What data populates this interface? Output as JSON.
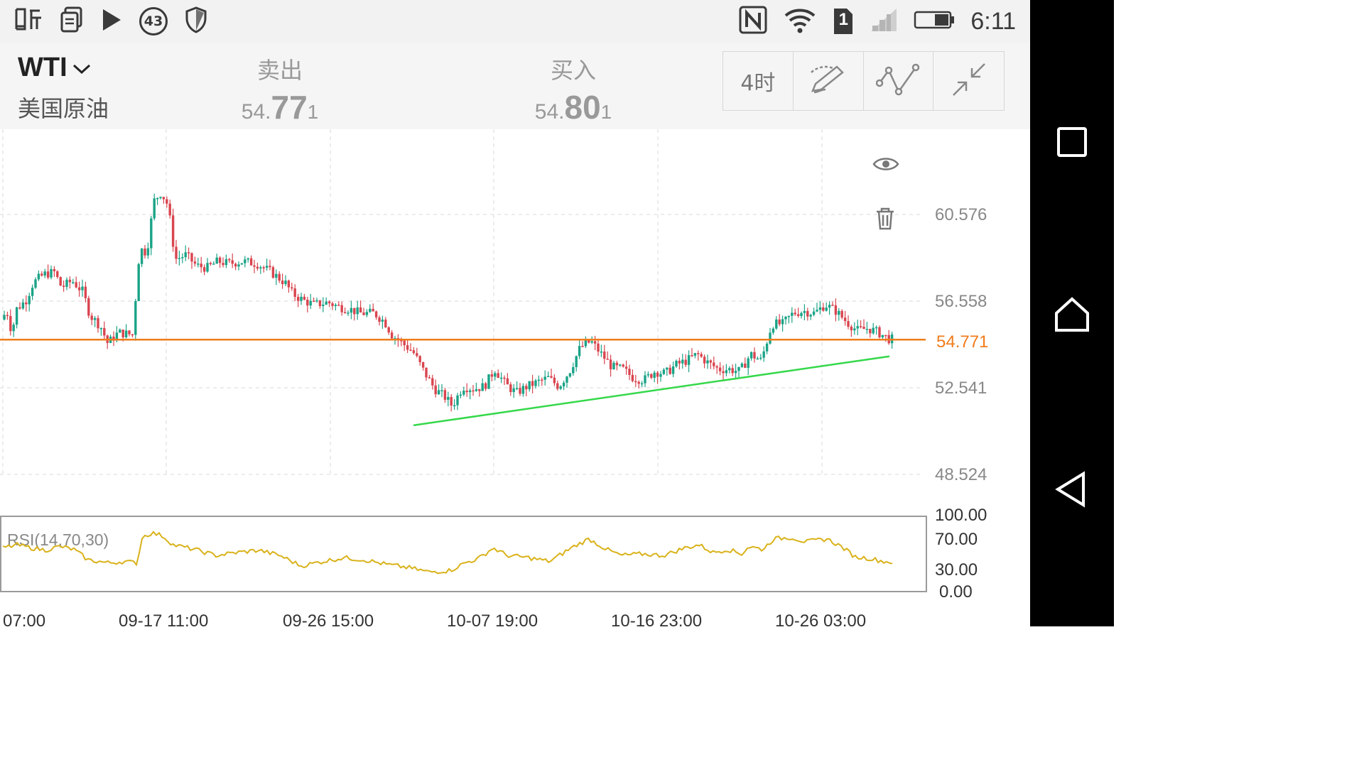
{
  "status_bar": {
    "left_icons": [
      "ting-app-icon",
      "copy-icon",
      "play-icon",
      "notification-badge",
      "shield-icon"
    ],
    "notification_count": "43",
    "right_icons": [
      "nfc-icon",
      "wifi-icon",
      "sim-1-icon",
      "signal-icon",
      "battery-icon"
    ],
    "sim_label": "1",
    "time": "6:11"
  },
  "header": {
    "symbol": "WTI",
    "symbol_name": "美国原油",
    "sell": {
      "label": "卖出",
      "price_a": "54.",
      "price_b": "77",
      "price_c": "1"
    },
    "buy": {
      "label": "买入",
      "price_a": "54.",
      "price_b": "80",
      "price_c": "1"
    },
    "tools": {
      "period_label": "4时",
      "draw_icon": "draw-pen-icon",
      "indicator_icon": "line-indicator-icon",
      "collapse_icon": "collapse-arrows-icon"
    }
  },
  "chart": {
    "eye_icon": "eye-icon",
    "delete_icon": "trash-icon",
    "rsi_label": "RSI(14,70,30)"
  },
  "chart_data": {
    "type": "candlestick",
    "y_ticks": [
      "60.576",
      "56.558",
      "52.541",
      "48.524"
    ],
    "current_price": "54.771",
    "x_ticks": [
      "07:00",
      "09-17 11:00",
      "09-26 15:00",
      "10-07 19:00",
      "10-16 23:00",
      "10-26 03:00"
    ],
    "rsi_ticks": [
      "100.00",
      "70.00",
      "30.00",
      "0.00"
    ],
    "price_path": [
      [
        0,
        55.7
      ],
      [
        8,
        56.1
      ],
      [
        15,
        55.1
      ],
      [
        22,
        56.2
      ],
      [
        35,
        56.6
      ],
      [
        45,
        57.4
      ],
      [
        60,
        57.8
      ],
      [
        75,
        57.9
      ],
      [
        85,
        57.2
      ],
      [
        100,
        57.5
      ],
      [
        115,
        57.0
      ],
      [
        125,
        55.9
      ],
      [
        140,
        55.4
      ],
      [
        150,
        54.6
      ],
      [
        165,
        55.1
      ],
      [
        185,
        55.0
      ],
      [
        195,
        59.0
      ],
      [
        205,
        58.8
      ],
      [
        215,
        61.2
      ],
      [
        225,
        61.6
      ],
      [
        235,
        61.0
      ],
      [
        245,
        58.5
      ],
      [
        260,
        58.7
      ],
      [
        275,
        58.2
      ],
      [
        290,
        58.1
      ],
      [
        305,
        58.4
      ],
      [
        320,
        58.3
      ],
      [
        340,
        58.4
      ],
      [
        360,
        58.3
      ],
      [
        380,
        57.9
      ],
      [
        400,
        57.4
      ],
      [
        410,
        56.9
      ],
      [
        425,
        56.6
      ],
      [
        440,
        56.4
      ],
      [
        460,
        56.5
      ],
      [
        475,
        56.3
      ],
      [
        490,
        56.2
      ],
      [
        505,
        56.0
      ],
      [
        525,
        56.0
      ],
      [
        540,
        55.6
      ],
      [
        550,
        55.0
      ],
      [
        565,
        54.6
      ],
      [
        580,
        54.2
      ],
      [
        595,
        53.3
      ],
      [
        610,
        52.5
      ],
      [
        625,
        52.1
      ],
      [
        635,
        51.7
      ],
      [
        650,
        52.6
      ],
      [
        665,
        52.5
      ],
      [
        680,
        52.6
      ],
      [
        695,
        53.4
      ],
      [
        710,
        52.7
      ],
      [
        725,
        52.3
      ],
      [
        740,
        52.6
      ],
      [
        755,
        52.8
      ],
      [
        770,
        53.0
      ],
      [
        785,
        52.6
      ],
      [
        800,
        53.3
      ],
      [
        815,
        54.4
      ],
      [
        830,
        54.7
      ],
      [
        845,
        54.1
      ],
      [
        860,
        53.5
      ],
      [
        875,
        53.4
      ],
      [
        890,
        53.0
      ],
      [
        905,
        52.9
      ],
      [
        920,
        53.3
      ],
      [
        935,
        53.2
      ],
      [
        950,
        53.6
      ],
      [
        965,
        53.8
      ],
      [
        980,
        54.1
      ],
      [
        995,
        53.7
      ],
      [
        1010,
        53.4
      ],
      [
        1025,
        53.4
      ],
      [
        1040,
        53.3
      ],
      [
        1055,
        54.1
      ],
      [
        1070,
        53.8
      ],
      [
        1085,
        55.5
      ],
      [
        1100,
        55.5
      ],
      [
        1115,
        56.0
      ],
      [
        1130,
        56.1
      ],
      [
        1145,
        56.0
      ],
      [
        1160,
        56.4
      ],
      [
        1175,
        56.1
      ],
      [
        1190,
        55.6
      ],
      [
        1205,
        55.2
      ],
      [
        1220,
        55.3
      ],
      [
        1235,
        55.1
      ],
      [
        1250,
        54.8
      ]
    ],
    "support_line": {
      "from": [
        582,
        50.8
      ],
      "to": [
        1252,
        54.0
      ]
    },
    "rsi_path": [
      [
        0,
        58
      ],
      [
        20,
        62
      ],
      [
        40,
        58
      ],
      [
        60,
        55
      ],
      [
        80,
        60
      ],
      [
        100,
        56
      ],
      [
        120,
        42
      ],
      [
        150,
        38
      ],
      [
        170,
        40
      ],
      [
        190,
        38
      ],
      [
        195,
        72
      ],
      [
        210,
        78
      ],
      [
        225,
        74
      ],
      [
        240,
        62
      ],
      [
        270,
        56
      ],
      [
        300,
        48
      ],
      [
        330,
        52
      ],
      [
        360,
        55
      ],
      [
        390,
        48
      ],
      [
        420,
        34
      ],
      [
        450,
        40
      ],
      [
        480,
        45
      ],
      [
        510,
        42
      ],
      [
        540,
        36
      ],
      [
        570,
        32
      ],
      [
        600,
        26
      ],
      [
        630,
        28
      ],
      [
        650,
        38
      ],
      [
        670,
        44
      ],
      [
        690,
        58
      ],
      [
        710,
        48
      ],
      [
        740,
        45
      ],
      [
        770,
        40
      ],
      [
        800,
        58
      ],
      [
        825,
        70
      ],
      [
        850,
        56
      ],
      [
        870,
        48
      ],
      [
        900,
        50
      ],
      [
        930,
        48
      ],
      [
        960,
        58
      ],
      [
        980,
        62
      ],
      [
        1000,
        52
      ],
      [
        1020,
        56
      ],
      [
        1040,
        50
      ],
      [
        1050,
        60
      ],
      [
        1070,
        56
      ],
      [
        1085,
        70
      ],
      [
        1110,
        72
      ],
      [
        1130,
        66
      ],
      [
        1160,
        70
      ],
      [
        1180,
        60
      ],
      [
        1200,
        46
      ],
      [
        1220,
        44
      ],
      [
        1240,
        40
      ],
      [
        1252,
        39
      ]
    ],
    "colors": {
      "up": "#1aa387",
      "down": "#d9454f",
      "price_line": "#f07c1c",
      "support": "#35d84a",
      "rsi": "#d9b21a",
      "axis_text": "#888888"
    }
  }
}
